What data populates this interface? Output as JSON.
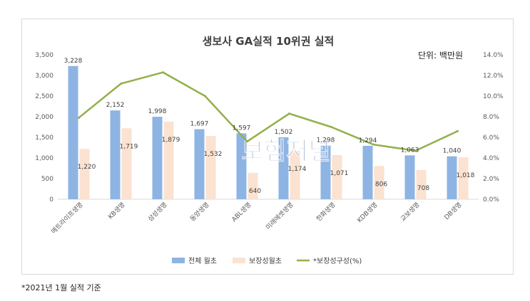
{
  "chart_data": {
    "type": "bar",
    "title": "생보사 GA실적  10위권 실적",
    "unit_label": "단위: 백만원",
    "categories": [
      "메트라이프생명",
      "KB생명",
      "삼성생명",
      "동양생명",
      "ABL생명",
      "미래에셋생명",
      "한화생명",
      "KDB생명",
      "교보생명",
      "DB생명"
    ],
    "series": [
      {
        "name": "전체 월초",
        "type": "bar",
        "axis": "left",
        "color": "#8eb4e3",
        "values": [
          3228,
          2152,
          1998,
          1697,
          1597,
          1502,
          1298,
          1294,
          1063,
          1040
        ],
        "labels": [
          "3,228",
          "2,152",
          "1,998",
          "1,697",
          "1,597",
          "1,502",
          "1,298",
          "1,294",
          "1,063",
          "1,040"
        ]
      },
      {
        "name": "보장성월초",
        "type": "bar",
        "axis": "left",
        "color": "#fbe2d1",
        "values": [
          1220,
          1719,
          1879,
          1532,
          640,
          1174,
          1071,
          806,
          708,
          1018
        ],
        "labels": [
          "1,220",
          "1,719",
          "1,879",
          "1,532",
          "640",
          "1,174",
          "1,071",
          "806",
          "708",
          "1,018"
        ]
      },
      {
        "name": "*보장성구성(%)",
        "type": "line",
        "axis": "right",
        "color": "#92b04a",
        "values": [
          7.9,
          11.2,
          12.3,
          10.0,
          5.6,
          8.3,
          7.0,
          5.3,
          4.7,
          6.6
        ]
      }
    ],
    "y_left": {
      "min": 0,
      "max": 3500,
      "step": 500,
      "ticks": [
        "0",
        "500",
        "1,000",
        "1,500",
        "2,000",
        "2,500",
        "3,000",
        "3,500"
      ]
    },
    "y_right": {
      "min": 0,
      "max": 14,
      "step": 2,
      "ticks": [
        "0.0%",
        "2.0%",
        "4.0%",
        "6.0%",
        "8.0%",
        "10.0%",
        "12.0%",
        "14.0%"
      ]
    },
    "grid": false,
    "legend_position": "bottom"
  },
  "watermark": {
    "text": "보험저널",
    "color": "#2f5496"
  },
  "footnote": "*2021년 1월 실적 기준"
}
